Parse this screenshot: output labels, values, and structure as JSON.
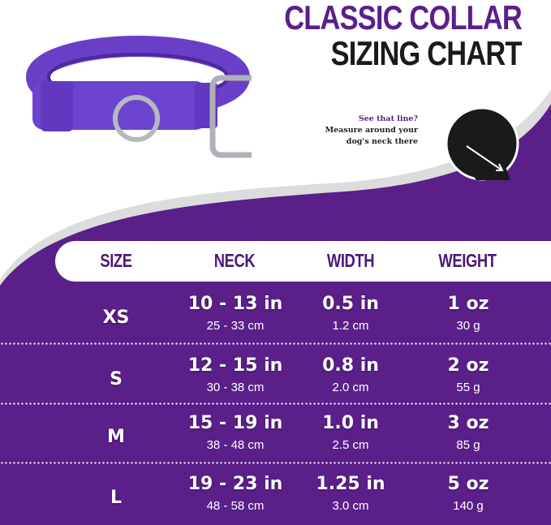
{
  "title": {
    "line1": "CLASSIC COLLAR",
    "line2": "SIZING CHART"
  },
  "hint": {
    "question": "See that line?",
    "line2": "Measure around your",
    "line3": "dog's neck there"
  },
  "colors": {
    "purple": "#5b1f8a",
    "header_text": "#4a1a75"
  },
  "table": {
    "headers": [
      "SIZE",
      "NECK",
      "WIDTH",
      "WEIGHT"
    ],
    "rows": [
      {
        "size": "XS",
        "neck": "10 - 13 in",
        "neck_cm": "25 - 33 cm",
        "width": "0.5 in",
        "width_cm": "1.2 cm",
        "weight": "1 oz",
        "weight_g": "30 g"
      },
      {
        "size": "S",
        "neck": "12 - 15 in",
        "neck_cm": "30 - 38 cm",
        "width": "0.8 in",
        "width_cm": "2.0 cm",
        "weight": "2 oz",
        "weight_g": "55 g"
      },
      {
        "size": "M",
        "neck": "15 - 19 in",
        "neck_cm": "38 - 48 cm",
        "width": "1.0 in",
        "width_cm": "2.5 cm",
        "weight": "3 oz",
        "weight_g": "85 g"
      },
      {
        "size": "L",
        "neck": "19 - 23 in",
        "neck_cm": "48 - 58 cm",
        "width": "1.25 in",
        "width_cm": "3.0 cm",
        "weight": "5 oz",
        "weight_g": "140 g"
      }
    ]
  }
}
